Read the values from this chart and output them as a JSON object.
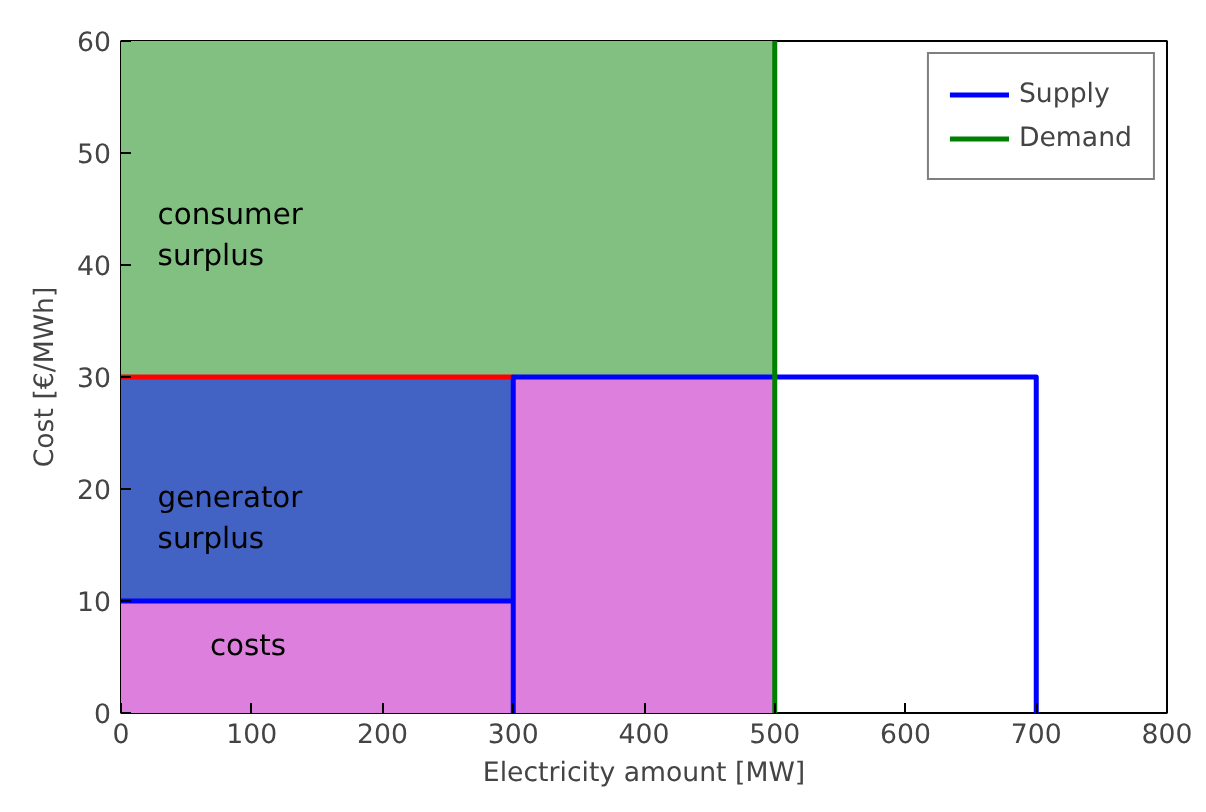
{
  "chart_data": {
    "type": "line",
    "xlabel": "Electricity amount [MW]",
    "ylabel": "Cost [€/MWh]",
    "xlim": [
      0,
      800
    ],
    "ylim": [
      0,
      60
    ],
    "xticks": [
      0,
      100,
      200,
      300,
      400,
      500,
      600,
      700,
      800
    ],
    "yticks": [
      0,
      10,
      20,
      30,
      40,
      50,
      60
    ],
    "grid": false,
    "legend": "top right",
    "stacked": true,
    "series": [
      {
        "type": "area",
        "color": "#dd80dd",
        "x": [
          0,
          300,
          300,
          500
        ],
        "values": [
          10,
          10,
          30,
          30
        ]
      },
      {
        "type": "area",
        "color": "#4262c4",
        "x": [
          0,
          300,
          300,
          500
        ],
        "values": [
          20,
          20,
          0,
          0
        ]
      },
      {
        "type": "area",
        "color": "#82c082",
        "x": [
          0,
          300,
          300,
          500
        ],
        "values": [
          30,
          30,
          30,
          30
        ]
      },
      {
        "color": "#ff0000",
        "x": [
          0,
          300
        ],
        "values": [
          30,
          30
        ]
      },
      {
        "name": "Supply",
        "color": "#0000ff",
        "x": [
          0,
          300,
          300,
          300,
          700,
          700
        ],
        "values": [
          10,
          10,
          0,
          30,
          30,
          0
        ]
      },
      {
        "name": "Demand",
        "color": "#008000",
        "x": [
          500,
          500
        ],
        "values": [
          0,
          60
        ]
      }
    ],
    "annotations": [
      "consumer\nsurplus",
      "generator\nsurplus",
      "costs"
    ]
  }
}
